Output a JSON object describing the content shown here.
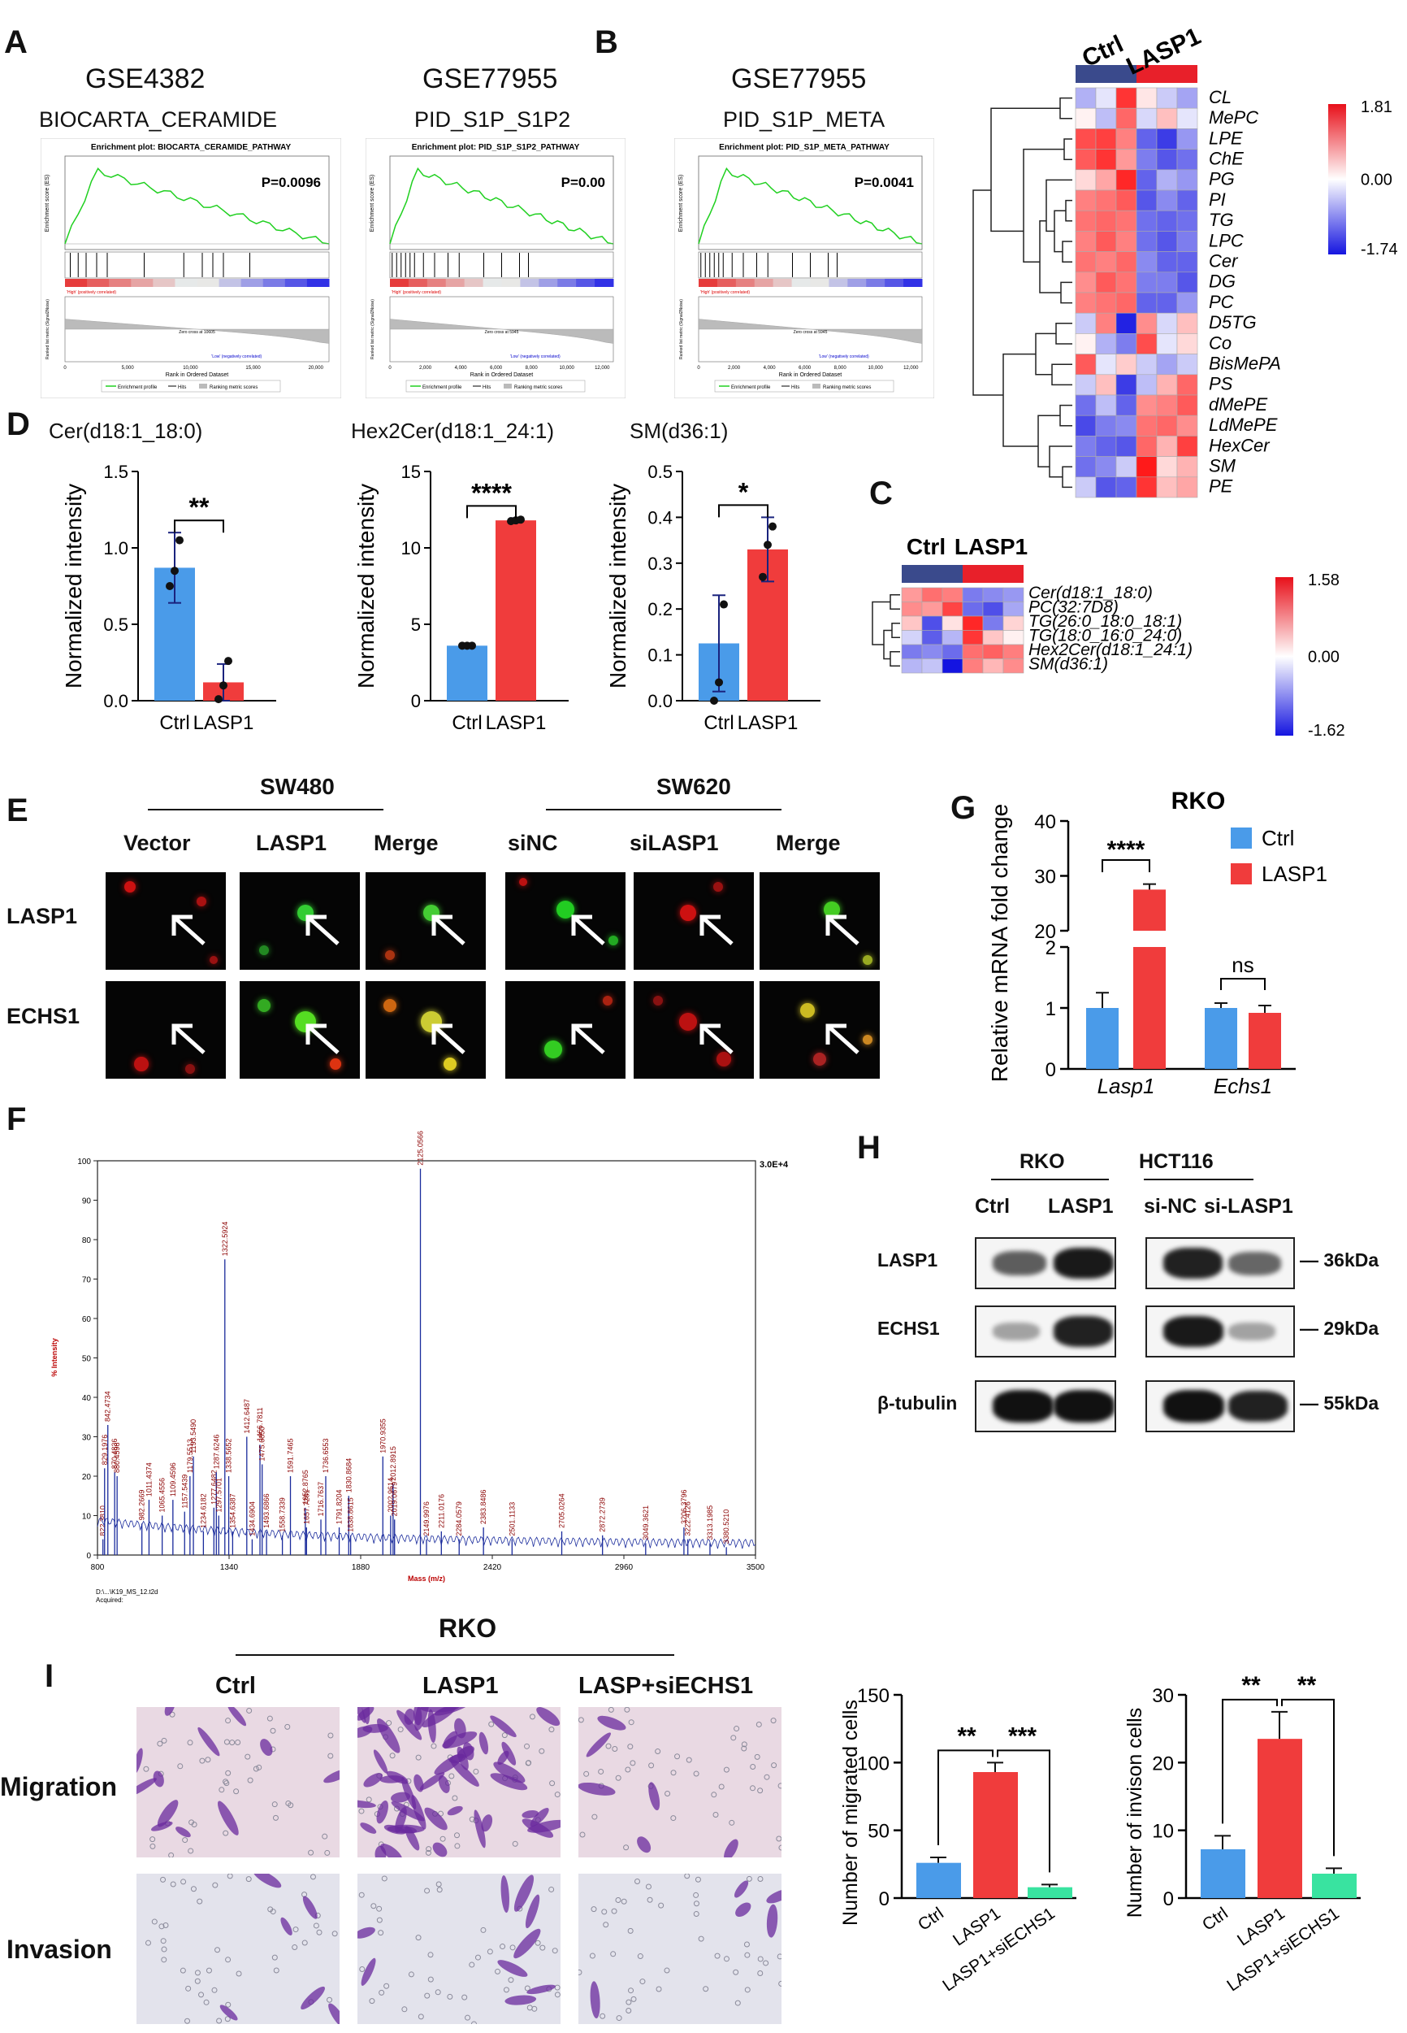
{
  "panels": {
    "A": "A",
    "B": "B",
    "C": "C",
    "D": "D",
    "E": "E",
    "F": "F",
    "G": "G",
    "H": "H",
    "I": "I"
  },
  "gsea": [
    {
      "dataset": "GSE4382",
      "pathway": "BIOCARTA_CERAMIDE",
      "plot_title": "Enrichment plot: BIOCARTA_CERAMIDE_PATHWAY",
      "p": "P=0.0096",
      "zero": "Zero cross at 10605",
      "xticks": [
        "0",
        "5,000",
        "10,000",
        "15,000",
        "20,000"
      ]
    },
    {
      "dataset": "GSE77955",
      "pathway": "PID_S1P_S1P2",
      "plot_title": "Enrichment plot: PID_S1P_S1P2_PATHWAY",
      "p": "P=0.00",
      "zero": "Zero cross at 5945",
      "xticks": [
        "0",
        "2,000",
        "4,000",
        "6,000",
        "8,000",
        "10,000",
        "12,000"
      ]
    },
    {
      "dataset": "GSE77955",
      "pathway": "PID_S1P_META",
      "plot_title": "Enrichment plot: PID_S1P_META_PATHWAY",
      "p": "P=0.0041",
      "zero": "Zero cross at 5945",
      "xticks": [
        "0",
        "2,000",
        "4,000",
        "6,000",
        "8,000",
        "10,000",
        "12,000"
      ]
    }
  ],
  "gsea_common": {
    "es_label": "Enrichment score (ES)",
    "metric_label": "Ranked list metric (Signal2Noise)",
    "x_label": "Rank in Ordered Dataset",
    "pos": "'High' (positively correlated)",
    "neg": "'Low' (negatively correlated)",
    "legend": [
      "Enrichment profile",
      "Hits",
      "Ranking metric scores"
    ]
  },
  "heatmap_b": {
    "groups": [
      "Ctrl",
      "LASP1"
    ],
    "rows": [
      "CL",
      "MePC",
      "LPE",
      "ChE",
      "PG",
      "PI",
      "TG",
      "LPC",
      "Cer",
      "DG",
      "PC",
      "D5TG",
      "Co",
      "BisMePA",
      "PS",
      "dMePE",
      "LdMePE",
      "HexCer",
      "SM",
      "PE"
    ],
    "scale": [
      "1.81",
      "0.00",
      "-1.74"
    ],
    "values": [
      [
        -0.6,
        -0.2,
        1.6,
        0.2,
        -0.4,
        -0.7
      ],
      [
        0.1,
        -0.5,
        1.2,
        -0.3,
        0.5,
        -0.2
      ],
      [
        1.4,
        1.5,
        1.0,
        -1.2,
        -1.5,
        -0.8
      ],
      [
        1.3,
        1.6,
        0.8,
        -1.0,
        -1.3,
        -1.1
      ],
      [
        0.3,
        0.7,
        1.7,
        -1.2,
        -0.6,
        -0.8
      ],
      [
        1.0,
        1.1,
        1.3,
        -1.3,
        -0.9,
        -1.2
      ],
      [
        1.1,
        1.2,
        1.1,
        -1.1,
        -1.2,
        -1.1
      ],
      [
        1.0,
        1.3,
        1.0,
        -1.1,
        -1.3,
        -1.0
      ],
      [
        1.1,
        1.0,
        1.2,
        -0.9,
        -1.2,
        -1.2
      ],
      [
        0.9,
        1.3,
        1.1,
        -1.0,
        -1.0,
        -1.3
      ],
      [
        1.0,
        1.1,
        1.2,
        -1.2,
        -1.2,
        -0.8
      ],
      [
        -0.4,
        1.0,
        -1.7,
        0.9,
        -0.3,
        0.5
      ],
      [
        0.1,
        -0.6,
        -1.0,
        1.4,
        -0.2,
        0.3
      ],
      [
        1.3,
        -0.2,
        0.4,
        -0.4,
        -0.7,
        -0.4
      ],
      [
        -0.4,
        0.5,
        -1.5,
        -0.5,
        0.6,
        1.2
      ],
      [
        -1.1,
        -0.5,
        -1.2,
        0.9,
        1.0,
        1.3
      ],
      [
        -1.4,
        -1.0,
        -0.9,
        1.1,
        1.2,
        0.9
      ],
      [
        -1.0,
        -1.2,
        -1.3,
        1.2,
        0.6,
        1.5
      ],
      [
        -1.1,
        -0.9,
        -0.4,
        1.8,
        0.3,
        0.6
      ],
      [
        -0.4,
        -1.3,
        -1.2,
        1.6,
        0.5,
        0.7
      ]
    ]
  },
  "heatmap_c": {
    "groups": [
      "Ctrl",
      "LASP1"
    ],
    "rows": [
      "Cer(d18:1_18:0)",
      "PC(32:7D8)",
      "TG(26:0_18:0_18:1)",
      "TG(18:0_16:0_24:0)",
      "Hex2Cer(d18:1_24:1)",
      "SM(d36:1)"
    ],
    "scale": [
      "1.58",
      "0.00",
      "-1.62"
    ],
    "values": [
      [
        0.7,
        1.0,
        0.9,
        -0.9,
        -0.8,
        -0.7
      ],
      [
        0.8,
        0.7,
        1.3,
        -1.0,
        -1.2,
        -0.6
      ],
      [
        0.4,
        -1.2,
        0.2,
        1.5,
        -0.9,
        0.3
      ],
      [
        -0.3,
        -1.1,
        -0.5,
        1.4,
        0.4,
        0.1
      ],
      [
        -0.9,
        -0.8,
        -1.0,
        1.0,
        1.1,
        0.9
      ],
      [
        -0.5,
        -0.4,
        -1.6,
        0.9,
        0.5,
        0.8
      ]
    ]
  },
  "bars_d": [
    {
      "title": "Cer(d18:1_18:0)",
      "ylabel": "Normalized intensity",
      "ticks": [
        "0.0",
        "0.5",
        "1.0",
        "1.5"
      ],
      "categories": [
        "Ctrl",
        "LASP1"
      ],
      "values": [
        0.87,
        0.12
      ],
      "errors": [
        0.23,
        0.12
      ],
      "points": [
        [
          0.75,
          0.85,
          1.05
        ],
        [
          0.01,
          0.1,
          0.26
        ]
      ],
      "ymax": 1.5,
      "sig": "**"
    },
    {
      "title": "Hex2Cer(d18:1_24:1)",
      "ylabel": "Normalized intensity",
      "ticks": [
        "0",
        "5",
        "10",
        "15"
      ],
      "categories": [
        "Ctrl",
        "LASP1"
      ],
      "values": [
        3.6,
        11.8
      ],
      "errors": [
        0.1,
        0.15
      ],
      "points": [
        [
          3.6,
          3.6,
          3.6
        ],
        [
          11.75,
          11.8,
          11.85
        ]
      ],
      "ymax": 15,
      "sig": "****"
    },
    {
      "title": "SM(d36:1)",
      "ylabel": "Normalized intensity",
      "ticks": [
        "0.0",
        "0.1",
        "0.2",
        "0.3",
        "0.4",
        "0.5"
      ],
      "categories": [
        "Ctrl",
        "LASP1"
      ],
      "values": [
        0.125,
        0.33
      ],
      "errors": [
        0.105,
        0.07
      ],
      "points": [
        [
          0.0,
          0.04,
          0.21
        ],
        [
          0.27,
          0.34,
          0.38
        ]
      ],
      "ymax": 0.5,
      "sig": "*"
    }
  ],
  "fluor": {
    "left_title": "SW480",
    "right_title": "SW620",
    "columns": [
      "Vector",
      "LASP1",
      "Merge",
      "siNC",
      "siLASP1",
      "Merge"
    ],
    "rows": [
      "LASP1",
      "ECHS1"
    ]
  },
  "chart_g": {
    "title": "RKO",
    "ylabel": "Relative mRNA fold change",
    "groups": [
      "Lasp1",
      "Echs1"
    ],
    "legend": [
      "Ctrl",
      "LASP1"
    ],
    "ticks_low": [
      "0",
      "1",
      "2"
    ],
    "ticks_high": [
      "20",
      "30",
      "40"
    ],
    "values": {
      "Ctrl": [
        1.0,
        1.0
      ],
      "LASP1": [
        27.5,
        0.92
      ]
    },
    "errors": {
      "Ctrl": [
        0.25,
        0.08
      ],
      "LASP1": [
        1.0,
        0.12
      ]
    },
    "sig": [
      "****",
      "ns"
    ],
    "colors": {
      "Ctrl": "#4a9be9",
      "LASP1": "#f03c3c"
    }
  },
  "ms": {
    "ylabel": "% Intensity",
    "xlabel": "Mass (m/z)",
    "xticks": [
      "800",
      "1340",
      "1880",
      "2420",
      "2960",
      "3500"
    ],
    "yticks": [
      "0",
      "10",
      "20",
      "30",
      "40",
      "50",
      "60",
      "70",
      "80",
      "90",
      "100"
    ],
    "max_label": "3.0E+4",
    "footer1": "D:\\...\\K19_MS_12.t2d",
    "footer2": "Acquired:",
    "peaks": [
      {
        "mz": 842.4734,
        "i": 33,
        "label": "842.4734"
      },
      {
        "mz": 822.381,
        "i": 4,
        "label": "822.3810"
      },
      {
        "mz": 829.1976,
        "i": 22,
        "label": "829.1976"
      },
      {
        "mz": 870.4836,
        "i": 21,
        "label": "870.4836"
      },
      {
        "mz": 880.4598,
        "i": 20,
        "label": "880.4598"
      },
      {
        "mz": 982.2669,
        "i": 8,
        "label": "982.2669"
      },
      {
        "mz": 1011.4374,
        "i": 14,
        "label": "1011.4374"
      },
      {
        "mz": 1065.4556,
        "i": 10,
        "label": "1065.4556"
      },
      {
        "mz": 1109.4596,
        "i": 14,
        "label": "1109.4596"
      },
      {
        "mz": 1157.5439,
        "i": 11,
        "label": "1157.5439"
      },
      {
        "mz": 1179.5513,
        "i": 20,
        "label": "1179.5513"
      },
      {
        "mz": 1193.549,
        "i": 25,
        "label": "1193.5490"
      },
      {
        "mz": 1234.6182,
        "i": 6,
        "label": "1234.6182"
      },
      {
        "mz": 1277.6482,
        "i": 12,
        "label": "1277.6482"
      },
      {
        "mz": 1287.6246,
        "i": 21,
        "label": "1287.6246"
      },
      {
        "mz": 1297.5701,
        "i": 10,
        "label": "1297.5701"
      },
      {
        "mz": 1322.5924,
        "i": 75,
        "label": "1322.5924"
      },
      {
        "mz": 1338.5652,
        "i": 20,
        "label": "1338.5652"
      },
      {
        "mz": 1354.6387,
        "i": 6,
        "label": "1354.6387"
      },
      {
        "mz": 1412.6487,
        "i": 30,
        "label": "1412.6487"
      },
      {
        "mz": 1434.6904,
        "i": 4,
        "label": "1434.6904"
      },
      {
        "mz": 1466.7811,
        "i": 28,
        "label": "1466.7811"
      },
      {
        "mz": 1475.685,
        "i": 23,
        "label": "1475.6850"
      },
      {
        "mz": 1493.6866,
        "i": 6,
        "label": "1493.6866"
      },
      {
        "mz": 1591.7465,
        "i": 20,
        "label": "1591.7465"
      },
      {
        "mz": 1558.7339,
        "i": 5,
        "label": "1558.7339"
      },
      {
        "mz": 1652.8765,
        "i": 12,
        "label": "1652.8765"
      },
      {
        "mz": 1657.7281,
        "i": 7,
        "label": "1657.7281"
      },
      {
        "mz": 1716.7637,
        "i": 9,
        "label": "1716.7637"
      },
      {
        "mz": 1736.6553,
        "i": 20,
        "label": "1736.6553"
      },
      {
        "mz": 1791.8204,
        "i": 7,
        "label": "1791.8204"
      },
      {
        "mz": 1830.8684,
        "i": 15,
        "label": "1830.8684"
      },
      {
        "mz": 1838.8615,
        "i": 5,
        "label": "1838.8615"
      },
      {
        "mz": 1970.9355,
        "i": 25,
        "label": "1970.9355"
      },
      {
        "mz": 2002.9614,
        "i": 10,
        "label": "2002.9614"
      },
      {
        "mz": 2012.8915,
        "i": 18,
        "label": "2012.8915"
      },
      {
        "mz": 2019.0679,
        "i": 9,
        "label": "2019.0679"
      },
      {
        "mz": 2125.0566,
        "i": 98,
        "label": "2125.0566"
      },
      {
        "mz": 2149.9976,
        "i": 4,
        "label": "2149.9976"
      },
      {
        "mz": 2211.0176,
        "i": 6,
        "label": "2211.0176"
      },
      {
        "mz": 2284.0579,
        "i": 4,
        "label": "2284.0579"
      },
      {
        "mz": 2383.8486,
        "i": 7,
        "label": "2383.8486"
      },
      {
        "mz": 2501.1133,
        "i": 4,
        "label": "2501.1133"
      },
      {
        "mz": 2705.0264,
        "i": 6,
        "label": "2705.0264"
      },
      {
        "mz": 2872.2739,
        "i": 5,
        "label": "2872.2739"
      },
      {
        "mz": 3049.3621,
        "i": 3,
        "label": "3049.3621"
      },
      {
        "mz": 3206.3796,
        "i": 7,
        "label": "3206.3796"
      },
      {
        "mz": 3222.4126,
        "i": 4,
        "label": "3222.4126"
      },
      {
        "mz": 3313.1985,
        "i": 3,
        "label": "3313.1985"
      },
      {
        "mz": 3380.521,
        "i": 2,
        "label": "3380.5210"
      }
    ]
  },
  "blot": {
    "left_title": "RKO",
    "right_title": "HCT116",
    "lanes": [
      "Ctrl",
      "LASP1",
      "si-NC",
      "si-LASP1"
    ],
    "rows": [
      "LASP1",
      "ECHS1",
      "β-tubulin"
    ],
    "sizes": [
      "36kDa",
      "29kDa",
      "55kDa"
    ]
  },
  "transwell": {
    "title": "RKO",
    "columns": [
      "Ctrl",
      "LASP1",
      "LASP+siECHS1"
    ],
    "rows": [
      "Migration",
      "Invasion"
    ]
  },
  "bars_i": [
    {
      "ylabel": "Number of migrated cells",
      "ticks": [
        "0",
        "50",
        "100",
        "150"
      ],
      "ymax": 150,
      "categories": [
        "Ctrl",
        "LASP1",
        "LASP1+siECHS1"
      ],
      "values": [
        26,
        93,
        8
      ],
      "errors": [
        4,
        7,
        2
      ],
      "sig": [
        "**",
        "***"
      ],
      "colors": [
        "#4a9be9",
        "#f03c3c",
        "#39e3a0"
      ]
    },
    {
      "ylabel": "Number of invison cells",
      "ticks": [
        "0",
        "10",
        "20",
        "30"
      ],
      "ymax": 30,
      "categories": [
        "Ctrl",
        "LASP1",
        "LASP1+siECHS1"
      ],
      "values": [
        7.2,
        23.5,
        3.6
      ],
      "errors": [
        2.0,
        4.0,
        0.8
      ],
      "sig": [
        "**",
        "**"
      ],
      "colors": [
        "#4a9be9",
        "#f03c3c",
        "#39e3a0"
      ]
    }
  ]
}
